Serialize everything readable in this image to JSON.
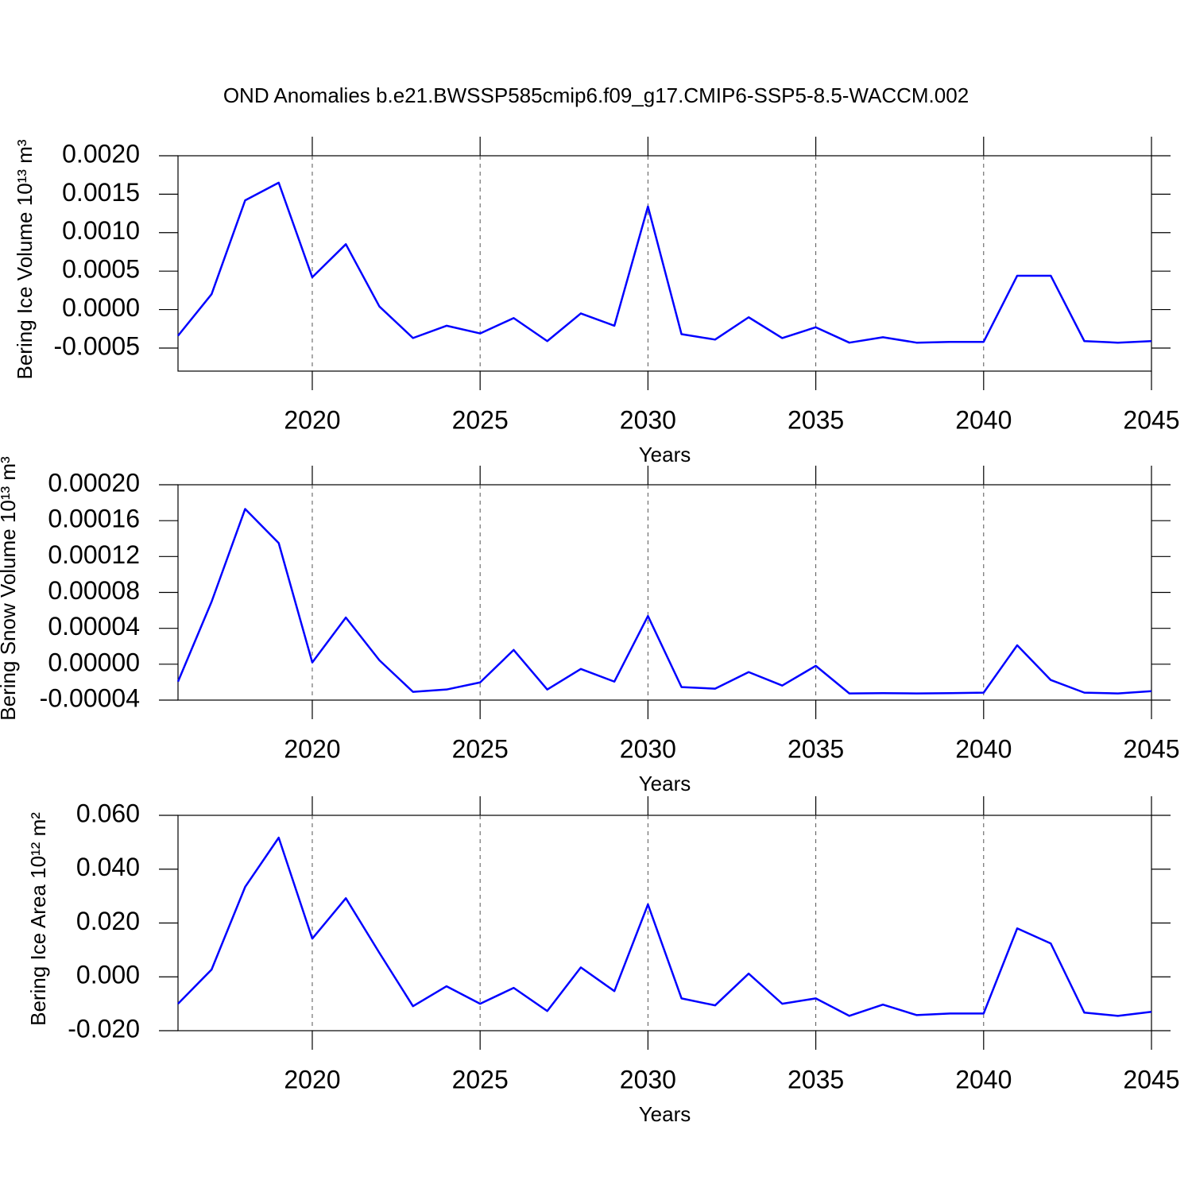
{
  "chart_data": [
    {
      "type": "line",
      "title": "OND Anomalies b.e21.BWSSP585cmip6.f09_g17.CMIP6-SSP5-8.5-WACCM.002",
      "ylabel": "Bering Ice Volume 10¹³ m³",
      "xlabel": "Years",
      "color": "#0000ff",
      "grid": true,
      "x": [
        2016,
        2017,
        2018,
        2019,
        2020,
        2021,
        2022,
        2023,
        2024,
        2025,
        2026,
        2027,
        2028,
        2029,
        2030,
        2031,
        2032,
        2033,
        2034,
        2035,
        2036,
        2037,
        2038,
        2039,
        2040,
        2041,
        2042,
        2043,
        2044,
        2045
      ],
      "values": [
        -0.00034,
        0.0002,
        0.00142,
        0.00165,
        0.00042,
        0.00085,
        4e-05,
        -0.00037,
        -0.00021,
        -0.00031,
        -0.00011,
        -0.00041,
        -5e-05,
        -0.00021,
        0.00134,
        -0.00032,
        -0.00039,
        -0.0001,
        -0.00037,
        -0.00023,
        -0.00043,
        -0.00036,
        -0.00043,
        -0.00042,
        -0.00042,
        0.00044,
        0.00044,
        -0.00041,
        -0.00043,
        -0.00041
      ],
      "xlim": [
        2016,
        2045
      ],
      "xticks": [
        2020,
        2025,
        2030,
        2035,
        2040,
        2045
      ],
      "ylim": [
        -0.0008,
        0.002
      ],
      "yticks": [
        {
          "value": -0.0005,
          "label": "-0.0005"
        },
        {
          "value": 0,
          "label": "0.0000"
        },
        {
          "value": 0.0005,
          "label": "0.0005"
        },
        {
          "value": 0.001,
          "label": "0.0010"
        },
        {
          "value": 0.0015,
          "label": "0.0015"
        },
        {
          "value": 0.002,
          "label": "0.0020"
        }
      ]
    },
    {
      "type": "line",
      "ylabel": "Bering Snow Volume 10¹³ m³",
      "xlabel": "Years",
      "color": "#0000ff",
      "grid": true,
      "x": [
        2016,
        2017,
        2018,
        2019,
        2020,
        2021,
        2022,
        2023,
        2024,
        2025,
        2026,
        2027,
        2028,
        2029,
        2030,
        2031,
        2032,
        2033,
        2034,
        2035,
        2036,
        2037,
        2038,
        2039,
        2040,
        2041,
        2042,
        2043,
        2044,
        2045
      ],
      "values": [
        -1.94e-05,
        6.96e-05,
        0.000173,
        0.000135,
        2e-06,
        5.2e-05,
        4.4e-06,
        -3.08e-05,
        -2.82e-05,
        -2.03e-05,
        1.59e-05,
        -2.82e-05,
        -5.3e-06,
        -1.94e-05,
        5.37e-05,
        -2.55e-05,
        -2.73e-05,
        -8.8e-06,
        -2.38e-05,
        -1.8e-06,
        -3.26e-05,
        -3.22e-05,
        -3.26e-05,
        -3.22e-05,
        -3.17e-05,
        2.11e-05,
        -1.76e-05,
        -3.17e-05,
        -3.26e-05,
        -3e-05
      ],
      "xlim": [
        2016,
        2045
      ],
      "xticks": [
        2020,
        2025,
        2030,
        2035,
        2040,
        2045
      ],
      "ylim": [
        -4e-05,
        0.0002
      ],
      "yticks": [
        {
          "value": -4e-05,
          "label": "-0.00004"
        },
        {
          "value": 0,
          "label": "0.00000"
        },
        {
          "value": 4e-05,
          "label": "0.00004"
        },
        {
          "value": 8e-05,
          "label": "0.00008"
        },
        {
          "value": 0.00012,
          "label": "0.00012"
        },
        {
          "value": 0.00016,
          "label": "0.00016"
        },
        {
          "value": 0.0002,
          "label": "0.00020"
        }
      ]
    },
    {
      "type": "line",
      "ylabel": "Bering Ice Area 10¹² m²",
      "xlabel": "Years",
      "color": "#0000ff",
      "grid": true,
      "x": [
        2016,
        2017,
        2018,
        2019,
        2020,
        2021,
        2022,
        2023,
        2024,
        2025,
        2026,
        2027,
        2028,
        2029,
        2030,
        2031,
        2032,
        2033,
        2034,
        2035,
        2036,
        2037,
        2038,
        2039,
        2040,
        2041,
        2042,
        2043,
        2044,
        2045
      ],
      "values": [
        -0.01,
        0.0027,
        0.0334,
        0.0517,
        0.0142,
        0.0292,
        0.0089,
        -0.0109,
        -0.0035,
        -0.01,
        -0.0041,
        -0.0127,
        0.0035,
        -0.0053,
        0.0269,
        -0.008,
        -0.0106,
        0.0012,
        -0.01,
        -0.008,
        -0.0145,
        -0.0103,
        -0.0142,
        -0.0136,
        -0.0136,
        0.018,
        0.0124,
        -0.0133,
        -0.0145,
        -0.013
      ],
      "xlim": [
        2016,
        2045
      ],
      "xticks": [
        2020,
        2025,
        2030,
        2035,
        2040,
        2045
      ],
      "ylim": [
        -0.02,
        0.06
      ],
      "yticks": [
        {
          "value": -0.02,
          "label": "-0.020"
        },
        {
          "value": 0,
          "label": "0.000"
        },
        {
          "value": 0.02,
          "label": "0.020"
        },
        {
          "value": 0.04,
          "label": "0.040"
        },
        {
          "value": 0.06,
          "label": "0.060"
        }
      ]
    }
  ]
}
